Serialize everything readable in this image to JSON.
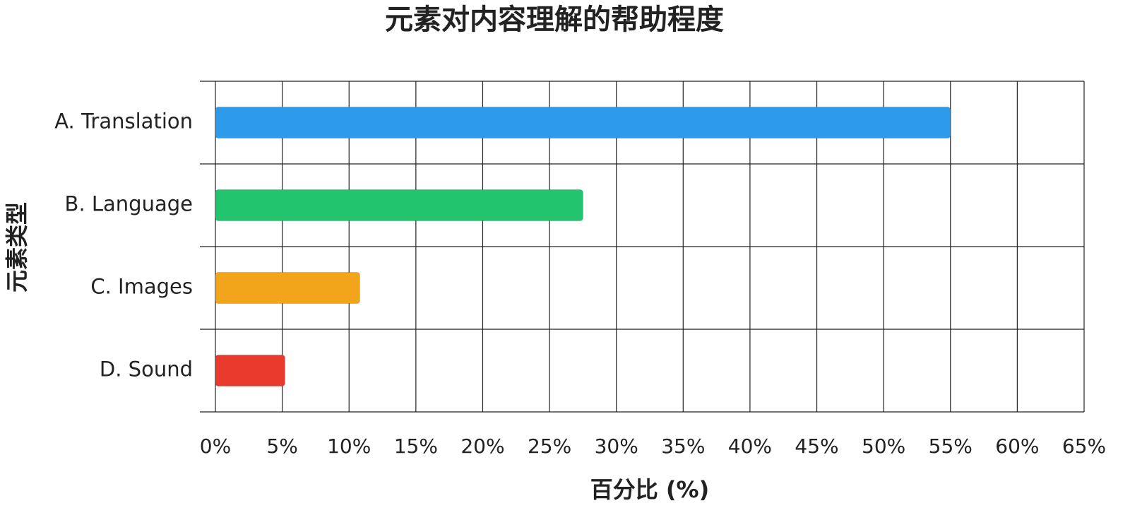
{
  "chart_data": {
    "type": "hbar",
    "title": "元素对内容理解的帮助程度",
    "x_label": "百分比 (%)",
    "y_label": "元素类型",
    "categories": [
      "A. Translation",
      "B. Language",
      "C. Images",
      "D. Sound"
    ],
    "values": [
      55,
      27.5,
      10.8,
      5.2
    ],
    "colors": [
      "#2e9bea",
      "#22c56d",
      "#f2a41b",
      "#ea3a2e"
    ],
    "xlim": [
      0,
      65
    ],
    "xticks": [
      {
        "value": 0,
        "label": "0%"
      },
      {
        "value": 5,
        "label": "5%"
      },
      {
        "value": 10,
        "label": "10%"
      },
      {
        "value": 15,
        "label": "15%"
      },
      {
        "value": 20,
        "label": "20%"
      },
      {
        "value": 25,
        "label": "25%"
      },
      {
        "value": 30,
        "label": "30%"
      },
      {
        "value": 35,
        "label": "35%"
      },
      {
        "value": 40,
        "label": "40%"
      },
      {
        "value": 45,
        "label": "45%"
      },
      {
        "value": 50,
        "label": "50%"
      },
      {
        "value": 55,
        "label": "55%"
      },
      {
        "value": 60,
        "label": "60%"
      },
      {
        "value": 65,
        "label": "65%"
      }
    ],
    "grid": true
  }
}
